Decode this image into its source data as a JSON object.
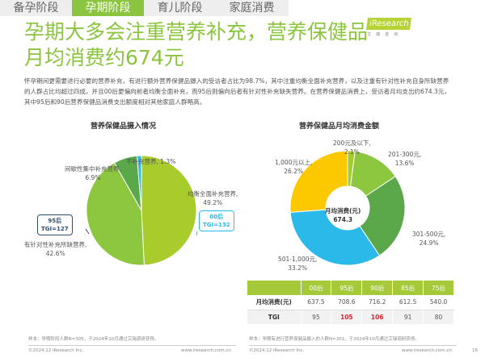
{
  "tabs": [
    {
      "label": "备孕阶段"
    },
    {
      "label": "孕期阶段",
      "active": true
    },
    {
      "label": "育儿阶段"
    },
    {
      "label": "家庭消费"
    }
  ],
  "title": "孕期大多会注重营养补充，营养保健品月均消费约674元",
  "logo": {
    "text": "iResearch",
    "sub": "艾瑞咨询"
  },
  "description": "怀孕期间更需要进行必要的营养补充，有进行额外营养保健品摄入的受访者占比为98.7%，其中注重均衡全面补充营养，以及注重有针对性补充自身所缺营养的人群占比均超过四成，并且00后更偏向前者均衡全面补充，而95后则偏向后者有针对性补充缺失营养。在营养保健品消费上，受访者月均支出约674.3元，其中95后和90后营养保健品消费支出额度相对其他家庭人群略高。",
  "colors": {
    "accent": "#8bc53f",
    "table_header": "#a6c93a",
    "highlight_red": "#e0202a"
  },
  "chart_data": [
    {
      "type": "pie",
      "title": "营养保健品摄入情况",
      "slices": [
        {
          "label": "均衡全面补充营养",
          "value": 49.2,
          "display": "49.2%",
          "color": "#a8cc2c"
        },
        {
          "label": "有针对性补充所缺营养",
          "value": 42.6,
          "display": "42.6%",
          "color": "#8dc63f"
        },
        {
          "label": "间歇性集中补充营养",
          "value": 6.9,
          "display": "6.9%",
          "color": "#5aa84a"
        },
        {
          "label": "不补充营养",
          "value": 1.3,
          "display": "1.3%",
          "color": "#2bb9ea"
        }
      ],
      "callouts": [
        {
          "line1": "95后",
          "line2": "TGI=127",
          "color": "#2f4f6f"
        },
        {
          "line1": "00后",
          "line2": "TGI=132",
          "color": "#2bb9ea"
        }
      ],
      "note": "样本：孕期阶段人群N=305，于2024年10月通过艾瑞调研获得。"
    },
    {
      "type": "pie",
      "title": "营养保健品月均消费金额",
      "donut": true,
      "center_label": "月均消费(元)",
      "center_value": "674.3",
      "slices": [
        {
          "label": "200元及以下",
          "value": 2.1,
          "display": "2.1%",
          "color": "#a8cc2c"
        },
        {
          "label": "201-300元",
          "value": 13.6,
          "display": "13.6%",
          "color": "#8dc63f"
        },
        {
          "label": "301-500元",
          "value": 24.9,
          "display": "24.9%",
          "color": "#5aa84a"
        },
        {
          "label": "501-1,000元",
          "value": 33.2,
          "display": "33.2%",
          "color": "#2bb9ea"
        },
        {
          "label": "1,000元以上",
          "value": 26.2,
          "display": "26.2%",
          "color": "#fcc800"
        }
      ],
      "table": {
        "columns": [
          "",
          "00后",
          "95后",
          "90后",
          "85后",
          "75后"
        ],
        "rows": [
          [
            "月均消费(元)",
            "637.5",
            "708.6",
            "716.2",
            "612.5",
            "540.0"
          ],
          [
            "TGI",
            "95",
            "105",
            "106",
            "91",
            "80"
          ]
        ],
        "highlighted": [
          "105",
          "106"
        ]
      },
      "note": "样本：孕期有进行营养保健品摄入的人群N=301，于2024年10月通过艾瑞调研获得。"
    }
  ],
  "footer": {
    "copyright": "©2024.12 iResearch Inc.",
    "url": "www.iresearch.com.cn",
    "page": "16"
  }
}
